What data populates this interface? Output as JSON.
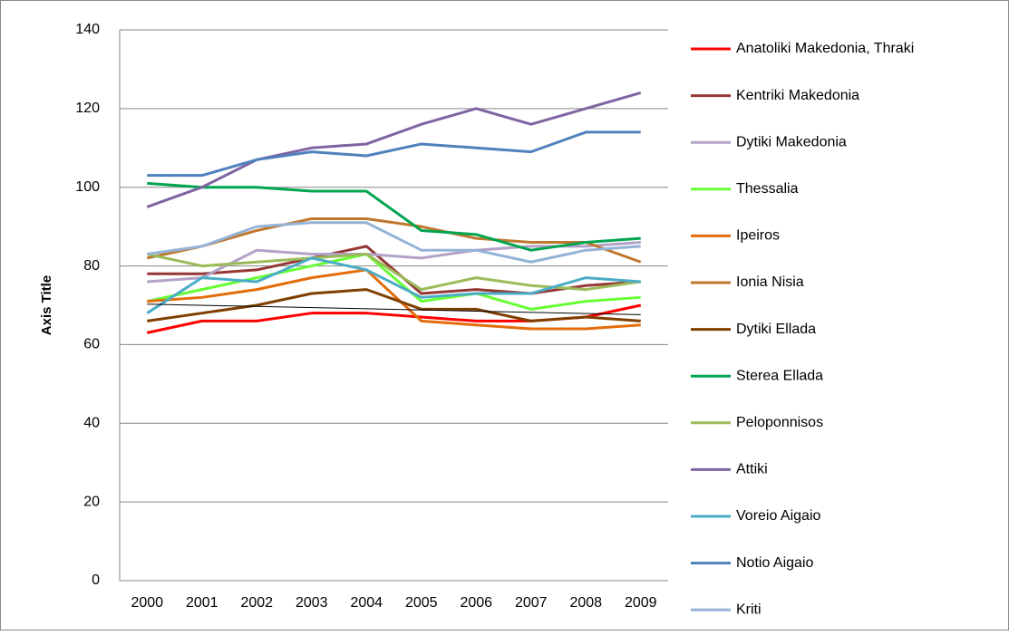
{
  "chart_data": {
    "type": "line",
    "y_axis_label": "Axis Title",
    "categories": [
      "2000",
      "2001",
      "2002",
      "2003",
      "2004",
      "2005",
      "2006",
      "2007",
      "2008",
      "2009"
    ],
    "series": [
      {
        "name": "Anatoliki Makedonia, Thraki",
        "color": "#ff0000",
        "values": [
          63,
          66,
          66,
          68,
          68,
          67,
          66,
          66,
          67,
          70
        ]
      },
      {
        "name": "Kentriki Makedonia",
        "color": "#953735",
        "values": [
          78,
          78,
          79,
          82,
          85,
          73,
          74,
          73,
          75,
          76
        ]
      },
      {
        "name": "Dytiki Makedonia",
        "color": "#b3a2c7",
        "values": [
          76,
          77,
          84,
          83,
          83,
          82,
          84,
          85,
          85,
          86
        ]
      },
      {
        "name": "Thessalia",
        "color": "#66ff33",
        "values": [
          71,
          74,
          77,
          80,
          83,
          71,
          73,
          69,
          71,
          72
        ]
      },
      {
        "name": "Ipeiros",
        "color": "#e46c0a",
        "values": [
          71,
          72,
          74,
          77,
          79,
          66,
          65,
          64,
          64,
          65
        ]
      },
      {
        "name": "Ionia Nisia",
        "color": "#c0782f",
        "values": [
          82,
          85,
          89,
          92,
          92,
          90,
          87,
          86,
          86,
          81
        ]
      },
      {
        "name": "Dytiki Ellada",
        "color": "#7f3f00",
        "values": [
          66,
          68,
          70,
          73,
          74,
          69,
          69,
          66,
          67,
          66
        ]
      },
      {
        "name": "Sterea Ellada",
        "color": "#00a550",
        "values": [
          101,
          100,
          100,
          99,
          99,
          89,
          88,
          84,
          86,
          87
        ]
      },
      {
        "name": "Peloponnisos",
        "color": "#9bbb59",
        "values": [
          83,
          80,
          81,
          82,
          83,
          74,
          77,
          75,
          74,
          76
        ]
      },
      {
        "name": "Attiki",
        "color": "#8064a2",
        "values": [
          95,
          100,
          107,
          110,
          111,
          116,
          120,
          116,
          120,
          124
        ]
      },
      {
        "name": "Voreio Aigaio",
        "color": "#4bacc6",
        "values": [
          68,
          77,
          76,
          82,
          79,
          72,
          73,
          73,
          77,
          76
        ]
      },
      {
        "name": "Notio Aigaio",
        "color": "#4f81bd",
        "values": [
          103,
          103,
          107,
          109,
          108,
          111,
          110,
          109,
          114,
          114
        ]
      },
      {
        "name": "Kriti",
        "color": "#95b3d7",
        "values": [
          83,
          85,
          90,
          91,
          91,
          84,
          84,
          81,
          84,
          85
        ]
      }
    ],
    "trendline": {
      "color": "#000000",
      "values": [
        70.3,
        67.6
      ]
    },
    "ylim": [
      0,
      140
    ],
    "yticks": [
      0,
      20,
      40,
      60,
      80,
      100,
      120,
      140
    ],
    "grid": true,
    "legend": "right"
  }
}
